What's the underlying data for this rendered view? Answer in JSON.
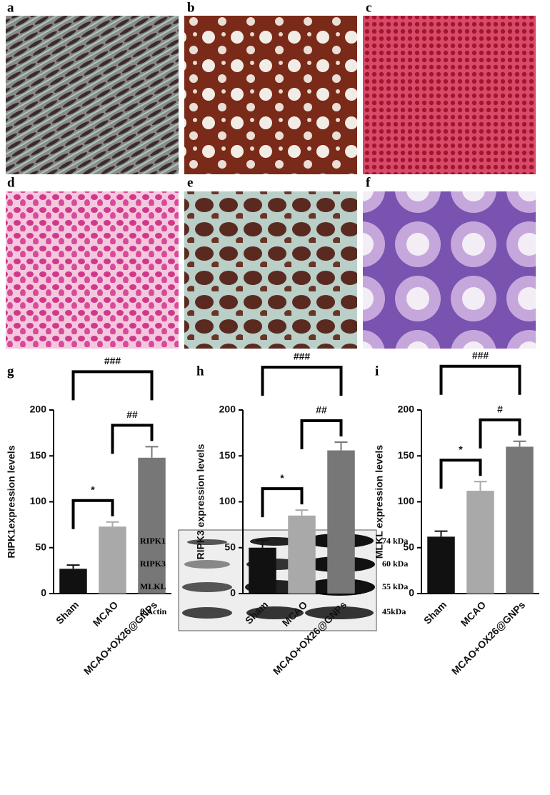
{
  "panels": {
    "labels": [
      "a",
      "b",
      "c",
      "d",
      "e",
      "f"
    ]
  },
  "chart_data": [
    {
      "type": "bar",
      "panel_label": "g",
      "y_label": "RIPK1expression levels",
      "categories": [
        "Sham",
        "MCAO",
        "MCAO+OX26@GNPs"
      ],
      "values": [
        27,
        73,
        148
      ],
      "errors": [
        4,
        5,
        12
      ],
      "colors": [
        "#111111",
        "#a9a9a9",
        "#777777"
      ],
      "ylim": [
        0,
        200
      ],
      "yticks": [
        0,
        50,
        100,
        150,
        200
      ],
      "annotations": [
        {
          "label": "*",
          "pair": [
            0,
            1
          ]
        },
        {
          "label": "##",
          "pair": [
            1,
            2
          ]
        },
        {
          "label": "###",
          "pair": [
            0,
            2
          ]
        }
      ]
    },
    {
      "type": "bar",
      "panel_label": "h",
      "y_label": "RIPK3 expression levels",
      "categories": [
        "Sham",
        "MCAO",
        "MCAO+OX26@GNPs"
      ],
      "values": [
        50,
        85,
        156
      ],
      "errors": [
        8,
        6,
        9
      ],
      "colors": [
        "#111111",
        "#a9a9a9",
        "#777777"
      ],
      "ylim": [
        0,
        200
      ],
      "yticks": [
        0,
        50,
        100,
        150,
        200
      ],
      "annotations": [
        {
          "label": "*",
          "pair": [
            0,
            1
          ]
        },
        {
          "label": "##",
          "pair": [
            1,
            2
          ]
        },
        {
          "label": "###",
          "pair": [
            0,
            2
          ]
        }
      ]
    },
    {
      "type": "bar",
      "panel_label": "i",
      "y_label": "MLKL expression levels",
      "categories": [
        "Sham",
        "MCAO",
        "MCAO+OX26@GNPs"
      ],
      "values": [
        62,
        112,
        160
      ],
      "errors": [
        6,
        10,
        6
      ],
      "colors": [
        "#111111",
        "#a9a9a9",
        "#777777"
      ],
      "ylim": [
        0,
        200
      ],
      "yticks": [
        0,
        50,
        100,
        150,
        200
      ],
      "annotations": [
        {
          "label": "*",
          "pair": [
            0,
            1
          ]
        },
        {
          "label": "#",
          "pair": [
            1,
            2
          ]
        },
        {
          "label": "###",
          "pair": [
            0,
            2
          ]
        }
      ]
    }
  ],
  "blot": {
    "rows": [
      {
        "protein": "RIPK1",
        "size": "74 kDa"
      },
      {
        "protein": "RIPK3",
        "size": "60 kDa"
      },
      {
        "protein": "MLKL",
        "size": "55 kDa"
      },
      {
        "protein": "β Actin",
        "size": "45kDa"
      }
    ]
  }
}
